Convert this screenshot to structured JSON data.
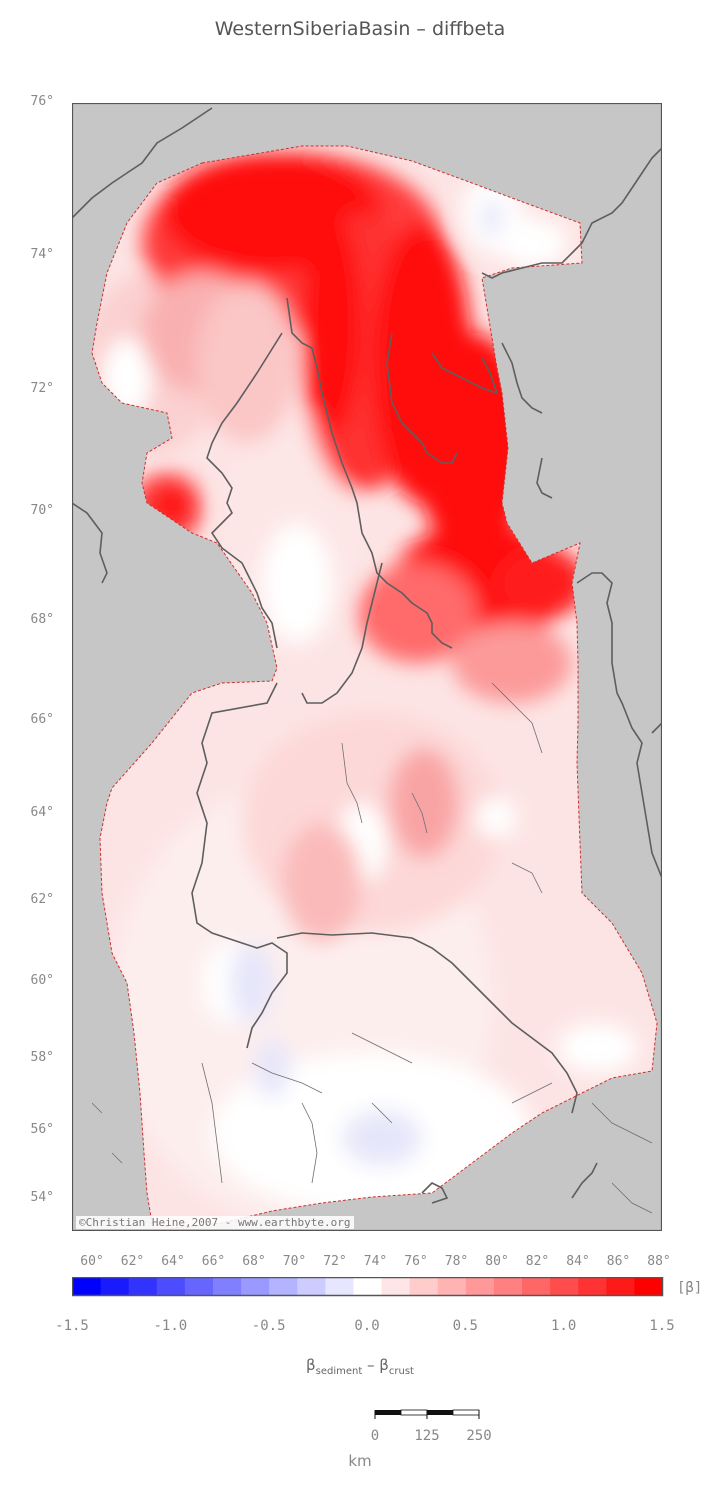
{
  "title": "WesternSiberiaBasin – diffbeta",
  "map": {
    "latitude_labels": [
      {
        "text": "76°",
        "lat": 76
      },
      {
        "text": "74°",
        "lat": 74
      },
      {
        "text": "72°",
        "lat": 72
      },
      {
        "text": "70°",
        "lat": 70
      },
      {
        "text": "68°",
        "lat": 68
      },
      {
        "text": "66°",
        "lat": 66
      },
      {
        "text": "64°",
        "lat": 64
      },
      {
        "text": "62°",
        "lat": 62
      },
      {
        "text": "60°",
        "lat": 60
      },
      {
        "text": "58°",
        "lat": 58
      },
      {
        "text": "56°",
        "lat": 56
      },
      {
        "text": "54°",
        "lat": 54
      }
    ],
    "longitude_labels": [
      "60°",
      "62°",
      "64°",
      "66°",
      "68°",
      "70°",
      "72°",
      "74°",
      "76°",
      "78°",
      "80°",
      "82°",
      "84°",
      "86°",
      "88°"
    ],
    "colors": {
      "land": "#c6c6c6",
      "coast": "#5e5e5e",
      "basin_outline": "#d03030",
      "strong_positive": "#ff1010",
      "neutral": "#ffffff",
      "negative": "#e6e6fa"
    },
    "copyright": "©Christian Heine,2007 - www.earthbyte.org"
  },
  "colorbar": {
    "ticks": [
      "-1.5",
      "-1.0",
      "-0.5",
      "0.0",
      "0.5",
      "1.0",
      "1.5"
    ],
    "min": -1.5,
    "max": 1.5,
    "unit": "[β]",
    "title": "β",
    "title_sub1": "sediment",
    "title_mid": " – β",
    "title_sub2": "crust",
    "colors": [
      "#0000ff",
      "#1a1aff",
      "#3333ff",
      "#4d4dff",
      "#6666ff",
      "#8080ff",
      "#9999ff",
      "#b3b3ff",
      "#ccccff",
      "#e6e6ff",
      "#ffffff",
      "#ffe6e6",
      "#ffcccc",
      "#ffb3b3",
      "#ff9999",
      "#ff8080",
      "#ff6666",
      "#ff4d4d",
      "#ff3333",
      "#ff1a1a",
      "#ff0000"
    ]
  },
  "scalebar": {
    "ticks": [
      "0",
      "125",
      "250"
    ],
    "unit": "km"
  }
}
